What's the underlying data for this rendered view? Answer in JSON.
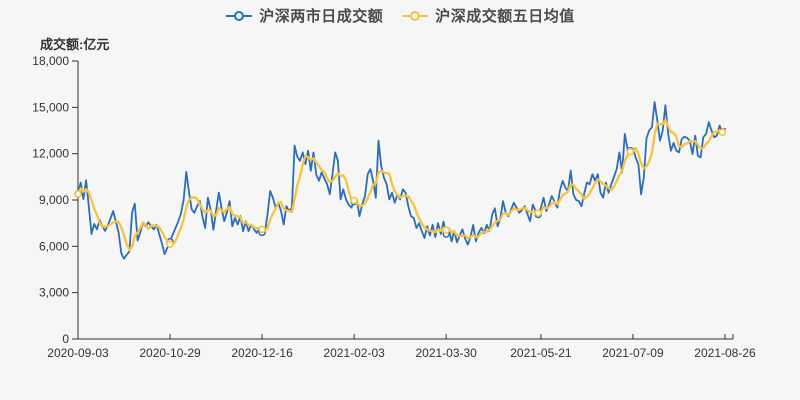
{
  "page": {
    "background_color": "#f6f6f7"
  },
  "chart_data": {
    "type": "line",
    "title": "",
    "y_axis_title": "成交额:亿元",
    "ylim": [
      0,
      18000
    ],
    "y_ticks": [
      0,
      3000,
      6000,
      9000,
      12000,
      15000,
      18000
    ],
    "y_tick_labels": [
      "0",
      "3,000",
      "6,000",
      "9,000",
      "12,000",
      "15,000",
      "18,000"
    ],
    "x_tick_labels": [
      "2020-09-03",
      "2020-10-29",
      "2020-12-16",
      "2021-02-03",
      "2021-03-30",
      "2021-05-21",
      "2021-07-09",
      "2021-08-26"
    ],
    "x_tick_indices": [
      0,
      34,
      68,
      102,
      136,
      171,
      205,
      239
    ],
    "marker_indices": [
      0,
      34,
      68,
      102,
      136,
      170,
      204,
      238
    ],
    "grid": false,
    "legend_position": "top-center",
    "axis_color": "#333333",
    "marker_fill": "#f6f6f7",
    "series": [
      {
        "name": "沪深两市日成交额",
        "type": "line",
        "color": "#2b6db9",
        "marker": "hollow-circle",
        "values": [
          9390,
          10130,
          9060,
          10280,
          8600,
          6800,
          7450,
          7100,
          7700,
          7300,
          7000,
          7350,
          7800,
          8280,
          7600,
          6900,
          5560,
          5190,
          5450,
          5670,
          8200,
          8760,
          6370,
          6900,
          7520,
          7300,
          7560,
          7300,
          7100,
          7400,
          6800,
          6200,
          5500,
          5900,
          6300,
          6760,
          7190,
          7600,
          8100,
          9000,
          10820,
          9500,
          8390,
          8170,
          8600,
          8930,
          7900,
          7190,
          9150,
          8400,
          7080,
          8300,
          9480,
          8500,
          7630,
          8200,
          8930,
          7300,
          7840,
          7410,
          7950,
          6980,
          7630,
          6980,
          7400,
          7100,
          6870,
          7200,
          6900,
          6870,
          8060,
          9580,
          9150,
          8500,
          8820,
          8300,
          7410,
          8600,
          8280,
          8500,
          12520,
          11800,
          11540,
          12080,
          11320,
          12190,
          10890,
          12080,
          10670,
          10240,
          10780,
          10400,
          10020,
          9370,
          10670,
          12080,
          11540,
          9040,
          9690,
          9040,
          8700,
          8500,
          8900,
          9040,
          7950,
          8710,
          9260,
          10670,
          11000,
          10240,
          9150,
          12840,
          11210,
          10450,
          10020,
          9040,
          9470,
          8820,
          9370,
          9040,
          9690,
          9470,
          8600,
          7950,
          7840,
          7190,
          7500,
          6980,
          6540,
          7300,
          6700,
          7400,
          6600,
          7500,
          6800,
          7600,
          6800,
          7100,
          6320,
          7000,
          6260,
          6700,
          7100,
          6500,
          6110,
          6600,
          7390,
          6320,
          6900,
          7200,
          6850,
          7390,
          7000,
          8060,
          8470,
          7300,
          7800,
          8930,
          8200,
          7950,
          8400,
          8820,
          8500,
          8170,
          8350,
          8600,
          8100,
          7630,
          8710,
          8300,
          8060,
          8500,
          9150,
          8280,
          8700,
          9260,
          8900,
          8500,
          9600,
          10240,
          9800,
          9580,
          10900,
          9370,
          9000,
          8930,
          8600,
          9400,
          10130,
          10020,
          10670,
          10240,
          10670,
          9470,
          9150,
          10130,
          9470,
          10020,
          10500,
          11000,
          12080,
          10780,
          13280,
          12300,
          12190,
          12300,
          11760,
          11320,
          9370,
          10450,
          13000,
          13500,
          13710,
          15340,
          14150,
          12840,
          13500,
          15130,
          13280,
          12190,
          12700,
          12190,
          12080,
          12950,
          13100,
          13020,
          12840,
          11970,
          13170,
          11860,
          11760,
          13060,
          13280,
          14040,
          13500,
          13060,
          13170,
          13820,
          13400,
          13610
        ]
      },
      {
        "name": "沪深成交额五日均值",
        "type": "line",
        "color": "#f7c33e",
        "marker": "hollow-circle",
        "derivation": "5-day moving average of 沪深两市日成交额",
        "window": 5
      }
    ]
  }
}
